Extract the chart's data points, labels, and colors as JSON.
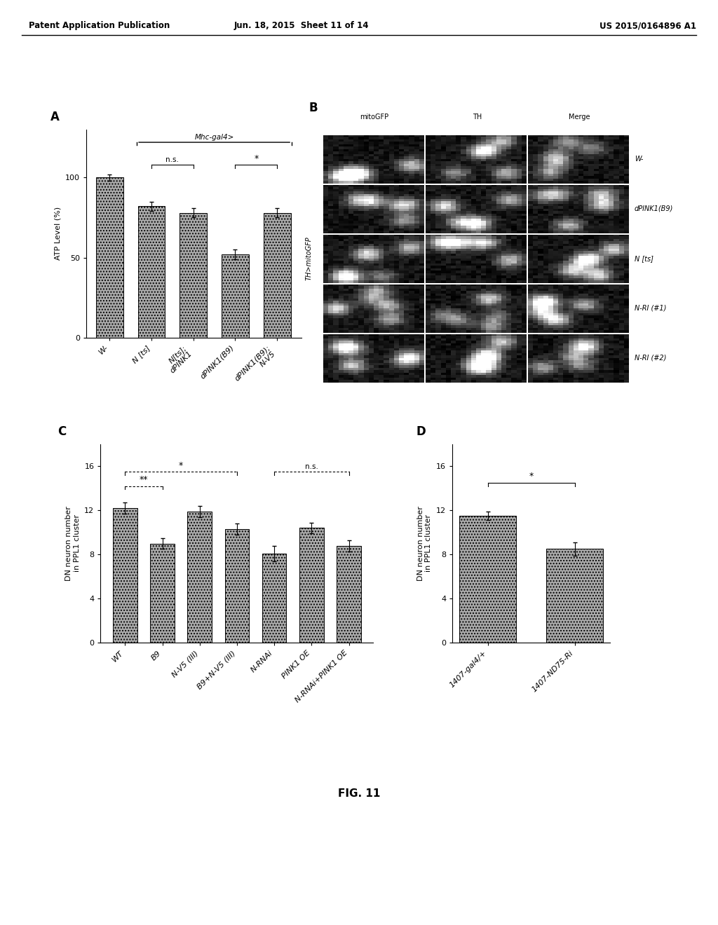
{
  "panel_A": {
    "title": "A",
    "bracket_label": "Mhc-gal4>",
    "ylabel": "ATP Level (%)",
    "ylim": [
      0,
      130
    ],
    "yticks": [
      0,
      50,
      100
    ],
    "categories": [
      "W-",
      "N [ts]",
      "N[ts];\ndPINK1",
      "dPINK1(B9)",
      "dPINK1(B9);\nN-V5"
    ],
    "values": [
      100,
      82,
      78,
      52,
      78
    ],
    "errors": [
      2,
      3,
      3,
      3,
      3
    ]
  },
  "panel_C": {
    "title": "C",
    "ylabel": "DN neuron number\nin PPL1 cluster",
    "ylim": [
      0,
      18
    ],
    "yticks": [
      0,
      4,
      8,
      12,
      16
    ],
    "categories": [
      "WT",
      "B9",
      "N-V5 (III)",
      "B9+N-V5 (III)",
      "N-RNAi",
      "PINK1 OE",
      "N-RNAi+PINK1 OE"
    ],
    "values": [
      12.2,
      9.0,
      11.9,
      10.3,
      8.1,
      10.4,
      8.8
    ],
    "errors": [
      0.5,
      0.5,
      0.5,
      0.5,
      0.7,
      0.5,
      0.5
    ]
  },
  "panel_D": {
    "title": "D",
    "ylabel": "DN neuron number\nin PPL1 cluster",
    "ylim": [
      0,
      18
    ],
    "yticks": [
      0,
      4,
      8,
      12,
      16
    ],
    "categories": [
      "1407-gal4/+",
      "1407-ND75-Ri"
    ],
    "values": [
      11.5,
      8.5
    ],
    "errors": [
      0.4,
      0.6
    ]
  },
  "panel_B": {
    "title": "B",
    "col_labels": [
      "mitoGFP",
      "TH",
      "Merge"
    ],
    "row_labels": [
      "W-",
      "dPINK1(B9)",
      "N [ts]",
      "N-RI (#1)",
      "N-RI (#2)"
    ],
    "y_label": "TH>mitoGFP"
  },
  "bar_color": "#aaaaaa",
  "bar_hatch": "....",
  "figure_caption": "FIG. 11",
  "header_left": "Patent Application Publication",
  "header_center": "Jun. 18, 2015  Sheet 11 of 14",
  "header_right": "US 2015/0164896 A1",
  "background_color": "#ffffff"
}
